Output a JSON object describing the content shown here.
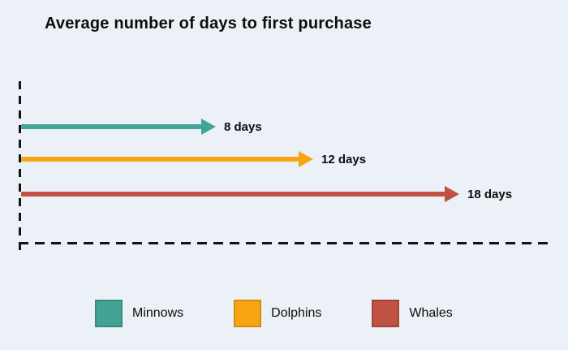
{
  "title": "Average number of days to first purchase",
  "colors": {
    "background": "#ECF1F7",
    "axis": "#141414",
    "minnows": "#42A396",
    "dolphins": "#F7A512",
    "whales": "#C05244"
  },
  "chart_data": {
    "type": "bar",
    "orientation": "horizontal",
    "title": "Average number of days to first purchase",
    "categories": [
      "Minnows",
      "Dolphins",
      "Whales"
    ],
    "values": [
      8,
      12,
      18
    ],
    "value_labels": [
      "8 days",
      "12 days",
      "18 days"
    ],
    "unit": "days",
    "xlim": [
      0,
      20
    ],
    "colors": [
      "#42A396",
      "#F7A512",
      "#C05244"
    ],
    "axis_style": "dashed",
    "grid": false,
    "legend": {
      "position": "bottom",
      "items": [
        "Minnows",
        "Dolphins",
        "Whales"
      ]
    }
  }
}
